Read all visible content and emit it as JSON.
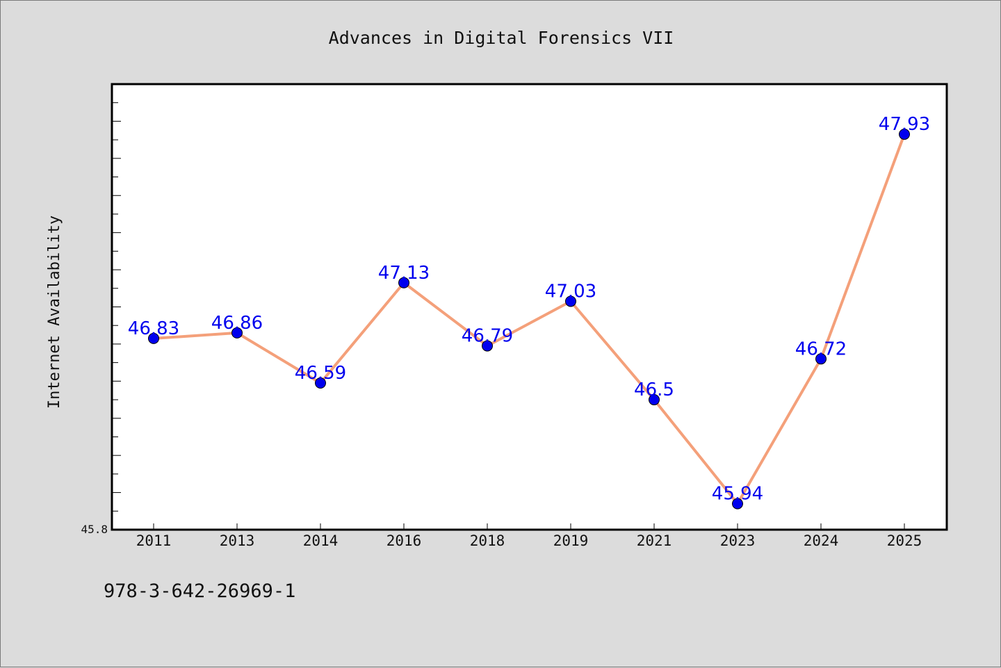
{
  "chart_data": {
    "type": "line",
    "title": "Advances in Digital Forensics VII",
    "xlabel": "",
    "ylabel": "Internet Availability",
    "categories": [
      "2011",
      "2013",
      "2014",
      "2016",
      "2018",
      "2019",
      "2021",
      "2023",
      "2024",
      "2025"
    ],
    "series": [
      {
        "values": [
          46.83,
          46.86,
          46.59,
          47.13,
          46.79,
          47.03,
          46.5,
          45.94,
          46.72,
          47.93
        ],
        "data_labels": [
          "46.83",
          "46.86",
          "46.59",
          "47.13",
          "46.79",
          "47.03",
          "46.5",
          "45.94",
          "46.72",
          "47.93"
        ]
      }
    ],
    "ylim": [
      45.8,
      48.2
    ],
    "ytick_labels": [
      "45.8"
    ],
    "y_minor_tick_step": 0.1,
    "grid": false,
    "colors": {
      "line": "#f4a07a",
      "marker": "#0000ee",
      "data_label": "#0000ee",
      "background": "#dcdcdc",
      "plot_area": "#ffffff"
    }
  },
  "footer": {
    "isbn": "978-3-642-26969-1"
  }
}
